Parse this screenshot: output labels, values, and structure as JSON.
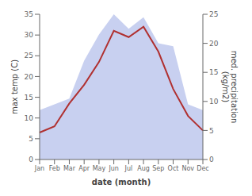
{
  "chart_data": {
    "type": "combo",
    "categories": [
      "Jan",
      "Feb",
      "Mar",
      "Apr",
      "May",
      "Jun",
      "Jul",
      "Aug",
      "Sep",
      "Oct",
      "Nov",
      "Dec"
    ],
    "series": [
      {
        "type": "area",
        "axis": "y2",
        "color": "#c8d0f0",
        "values": [
          8.5,
          9.5,
          10.5,
          17.0,
          21.5,
          25.0,
          22.5,
          24.5,
          20.0,
          19.5,
          9.5,
          8.5
        ]
      },
      {
        "type": "line",
        "color": "#b03030",
        "values": [
          6.5,
          8.0,
          13.5,
          18.0,
          23.5,
          31.0,
          29.5,
          32.0,
          26.0,
          17.0,
          10.5,
          7.0
        ]
      }
    ],
    "xlabel": "date (month)",
    "ylabel": "max temp (C)",
    "y2label": "med. precipitation\n(kg/m2)",
    "ylim": [
      0,
      35
    ],
    "yticks": [
      0,
      5,
      10,
      15,
      20,
      25,
      30,
      35
    ],
    "y2lim": [
      0,
      25
    ],
    "y2ticks": [
      0,
      5,
      10,
      15,
      20,
      25
    ],
    "grid": false
  }
}
